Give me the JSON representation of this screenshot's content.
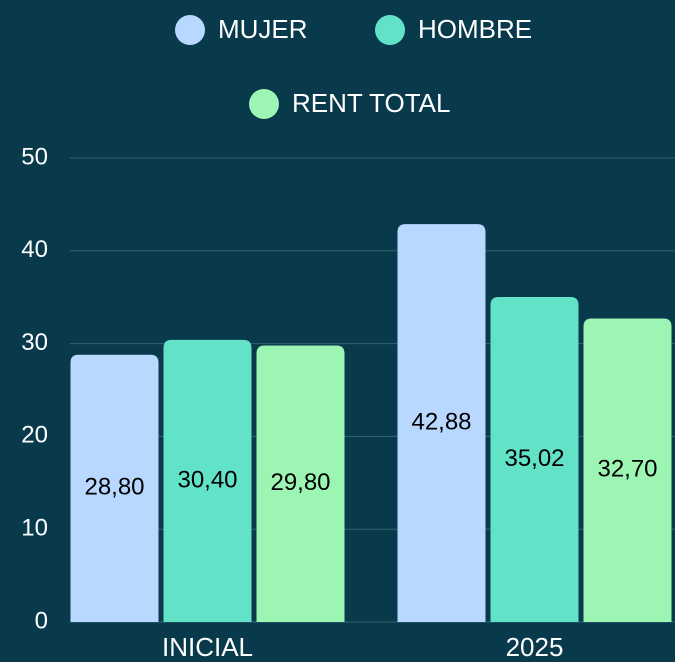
{
  "chart_data": {
    "type": "bar",
    "categories": [
      "INICIAL",
      "2025"
    ],
    "series": [
      {
        "name": "MUJER",
        "color": "#b8d8ff",
        "values": [
          28.8,
          42.88
        ],
        "value_labels": [
          "28,80",
          "42,88"
        ]
      },
      {
        "name": "HOMBRE",
        "color": "#62e3c8",
        "values": [
          30.4,
          35.02
        ],
        "value_labels": [
          "30,40",
          "35,02"
        ]
      },
      {
        "name": "RENT TOTAL",
        "color": "#9df5b4",
        "values": [
          29.8,
          32.7
        ],
        "value_labels": [
          "29,80",
          "32,70"
        ]
      }
    ],
    "ylim": [
      0,
      50
    ],
    "yticks": [
      0,
      10,
      20,
      30,
      40,
      50
    ],
    "grid": true,
    "legend": "top"
  }
}
